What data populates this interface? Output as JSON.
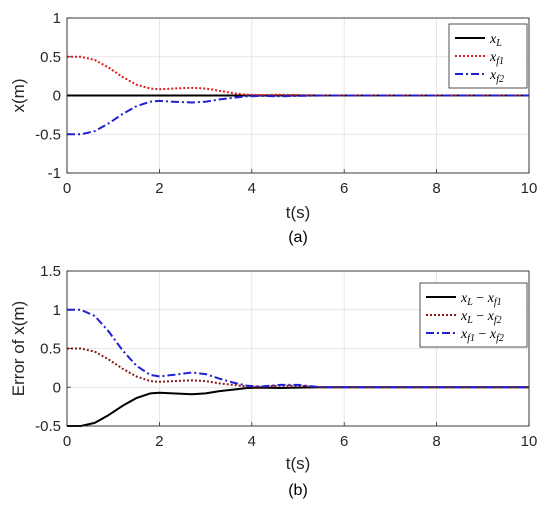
{
  "chart_data": [
    {
      "type": "line",
      "caption": "(a)",
      "xlabel": "t(s)",
      "ylabel": "x(m)",
      "xlim": [
        0,
        10
      ],
      "ylim": [
        -1,
        1
      ],
      "xticks": [
        "0",
        "2",
        "4",
        "6",
        "8",
        "10"
      ],
      "yticks": [
        "-1",
        "-0.5",
        "0",
        "0.5",
        "1"
      ],
      "grid": true,
      "legend_position": "top-right",
      "x": [
        0,
        0.3,
        0.6,
        0.9,
        1.2,
        1.5,
        1.8,
        2.0,
        2.3,
        2.7,
        3.0,
        3.3,
        3.6,
        3.9,
        4.2,
        4.6,
        5.0,
        5.5,
        6.0,
        7.0,
        8.0,
        9.0,
        10.0
      ],
      "series": [
        {
          "name": "x_L",
          "label_main": "x",
          "label_sub": "L",
          "color": "#000000",
          "dash": "solid",
          "values": [
            0,
            0,
            0,
            0,
            0,
            0,
            0,
            0,
            0,
            0,
            0,
            0,
            0,
            0,
            0,
            0,
            0,
            0,
            0,
            0,
            0,
            0,
            0
          ]
        },
        {
          "name": "x_f1",
          "label_main": "x",
          "label_sub": "f1",
          "color": "#e31a1c",
          "dash": "dotted",
          "values": [
            0.5,
            0.5,
            0.46,
            0.36,
            0.24,
            0.14,
            0.09,
            0.08,
            0.09,
            0.1,
            0.09,
            0.06,
            0.03,
            0.01,
            0.005,
            0.01,
            0.005,
            0,
            0,
            0,
            0,
            0,
            0
          ]
        },
        {
          "name": "x_f2",
          "label_main": "x",
          "label_sub": "f2",
          "color": "#1f1fd6",
          "dash": "dashdot",
          "values": [
            -0.5,
            -0.5,
            -0.46,
            -0.36,
            -0.24,
            -0.14,
            -0.08,
            -0.07,
            -0.08,
            -0.09,
            -0.08,
            -0.05,
            -0.03,
            -0.01,
            -0.005,
            -0.01,
            -0.005,
            0,
            0,
            0,
            0,
            0,
            0
          ]
        }
      ]
    },
    {
      "type": "line",
      "caption": "(b)",
      "xlabel": "t(s)",
      "ylabel": "Error of x(m)",
      "xlim": [
        0,
        10
      ],
      "ylim": [
        -0.5,
        1.5
      ],
      "xticks": [
        "0",
        "2",
        "4",
        "6",
        "8",
        "10"
      ],
      "yticks": [
        "-0.5",
        "0",
        "0.5",
        "1",
        "1.5"
      ],
      "grid": true,
      "legend_position": "top-right",
      "x": [
        0,
        0.3,
        0.6,
        0.9,
        1.2,
        1.5,
        1.8,
        2.0,
        2.3,
        2.7,
        3.0,
        3.3,
        3.6,
        3.9,
        4.2,
        4.6,
        5.0,
        5.5,
        6.0,
        7.0,
        8.0,
        9.0,
        10.0
      ],
      "series": [
        {
          "name": "x_L - x_f1",
          "label_main": "x",
          "label_sub": "L",
          "label_op": " − ",
          "label_main2": "x",
          "label_sub2": "f1",
          "color": "#000000",
          "dash": "solid",
          "values": [
            -0.5,
            -0.5,
            -0.46,
            -0.36,
            -0.24,
            -0.14,
            -0.08,
            -0.07,
            -0.08,
            -0.09,
            -0.08,
            -0.05,
            -0.03,
            -0.01,
            -0.005,
            -0.01,
            -0.005,
            0,
            0,
            0,
            0,
            0,
            0
          ]
        },
        {
          "name": "x_L - x_f2",
          "label_main": "x",
          "label_sub": "L",
          "label_op": " − ",
          "label_main2": "x",
          "label_sub2": "f2",
          "color": "#8b1a1a",
          "dash": "dotted",
          "values": [
            0.5,
            0.5,
            0.46,
            0.36,
            0.24,
            0.14,
            0.08,
            0.07,
            0.08,
            0.09,
            0.08,
            0.05,
            0.03,
            0.01,
            0.005,
            0.02,
            0.02,
            0,
            0,
            0,
            0,
            0,
            0
          ]
        },
        {
          "name": "x_f1 - x_f2",
          "label_main": "x",
          "label_sub": "f1",
          "label_op": " − ",
          "label_main2": "x",
          "label_sub2": "f2",
          "color": "#1f1fd6",
          "dash": "dashdot",
          "values": [
            1.0,
            1.0,
            0.92,
            0.72,
            0.48,
            0.28,
            0.16,
            0.14,
            0.16,
            0.19,
            0.17,
            0.11,
            0.06,
            0.02,
            0.01,
            0.03,
            0.03,
            0,
            0,
            0,
            0,
            0,
            0
          ]
        }
      ]
    }
  ]
}
